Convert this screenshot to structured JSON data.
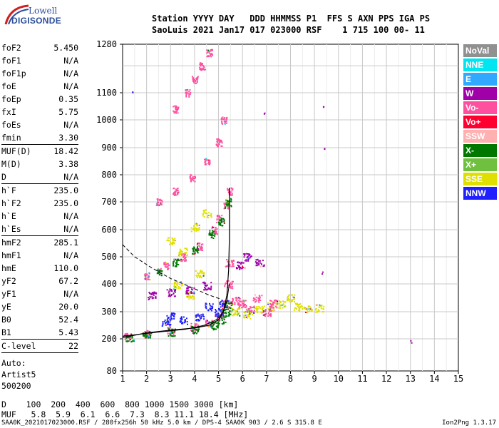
{
  "logo": {
    "line1": "Lowell",
    "line2": "DIGISONDE"
  },
  "header": {
    "line1": "Station YYYY DAY   DDD HHMMSS P1  FFS S AXN PPS IGA PS",
    "line2": "SaoLuis 2021 Jan17 017 023000 RSF    1 715 100 00- 11"
  },
  "params": [
    {
      "name": "foF2",
      "value": "5.450"
    },
    {
      "name": "foF1",
      "value": "N/A"
    },
    {
      "name": "foF1p",
      "value": "N/A"
    },
    {
      "name": "foE",
      "value": "N/A"
    },
    {
      "name": "foEp",
      "value": "0.35"
    },
    {
      "name": "fxI",
      "value": "5.75"
    },
    {
      "name": "foEs",
      "value": "N/A"
    },
    {
      "name": "fmin",
      "value": "3.30",
      "sep": true
    },
    {
      "name": "MUF(D)",
      "value": "18.42"
    },
    {
      "name": "M(D)",
      "value": "3.38"
    },
    {
      "name": "D",
      "value": "N/A",
      "sep": true
    },
    {
      "name": "h`F",
      "value": "235.0"
    },
    {
      "name": "h`F2",
      "value": "235.0"
    },
    {
      "name": "h`E",
      "value": "N/A"
    },
    {
      "name": "h`Es",
      "value": "N/A",
      "sep": true
    },
    {
      "name": "hmF2",
      "value": "285.1"
    },
    {
      "name": "hmF1",
      "value": "N/A"
    },
    {
      "name": "hmE",
      "value": "110.0"
    },
    {
      "name": "yF2",
      "value": "67.2"
    },
    {
      "name": "yF1",
      "value": "N/A"
    },
    {
      "name": "yE",
      "value": "20.0"
    },
    {
      "name": "B0",
      "value": "52.4"
    },
    {
      "name": "B1",
      "value": "5.43",
      "sep": true
    },
    {
      "name": "C-level",
      "value": "22",
      "sep": true
    }
  ],
  "auto": [
    "Auto:",
    "Artist5",
    "500200"
  ],
  "legend": [
    {
      "label": "NoVal",
      "color": "#909090"
    },
    {
      "label": "NNE",
      "color": "#00e5f0"
    },
    {
      "label": "E",
      "color": "#30a8ff"
    },
    {
      "label": "W",
      "color": "#a000a8"
    },
    {
      "label": "Vo-",
      "color": "#ff50a0"
    },
    {
      "label": "Vo+",
      "color": "#ff0030"
    },
    {
      "label": "SSW",
      "color": "#ffb0b0"
    },
    {
      "label": "X-",
      "color": "#007800"
    },
    {
      "label": "X+",
      "color": "#70c040"
    },
    {
      "label": "SSE",
      "color": "#e0e000"
    },
    {
      "label": "NNW",
      "color": "#2020ff"
    }
  ],
  "footer": {
    "d_row": "D    100  200  400  600  800 1000 1500 3000 [km]",
    "muf_row": "MUF   5.8  5.9  6.1  6.6  7.3  8.3 11.1 18.4 [MHz]",
    "info": "SAA0K_2021017023000.RSF / 280fx256h 50 kHz 5.0 km / DPS-4 SAA0K 903 / 2.6 S 315.8 E",
    "version": "Ion2Png 1.3.17"
  },
  "chart_data": {
    "type": "scatter",
    "x_ticks": [
      "1",
      "2",
      "3",
      "4",
      "5",
      "6",
      "7",
      "8",
      "9",
      "10",
      "11",
      "12",
      "13",
      "14",
      "15"
    ],
    "y_ticks": [
      "80",
      "200",
      "300",
      "400",
      "500",
      "600",
      "700",
      "800",
      "900",
      "1000",
      "1100",
      "1280"
    ],
    "xlim": [
      1,
      15
    ],
    "ylim": [
      80,
      1280
    ],
    "grid": true,
    "y_scale": "nonlinear",
    "profile_curve": [
      [
        1.0,
        205
      ],
      [
        2.0,
        222
      ],
      [
        3.0,
        232
      ],
      [
        4.0,
        240
      ],
      [
        4.6,
        250
      ],
      [
        5.0,
        270
      ],
      [
        5.2,
        300
      ],
      [
        5.35,
        360
      ],
      [
        5.42,
        450
      ],
      [
        5.45,
        560
      ],
      [
        5.45,
        680
      ],
      [
        5.45,
        750
      ]
    ],
    "trace_curve": [
      [
        1.0,
        210
      ],
      [
        2.5,
        225
      ],
      [
        3.6,
        235
      ],
      [
        4.4,
        250
      ],
      [
        4.9,
        270
      ],
      [
        5.2,
        300
      ],
      [
        5.35,
        340
      ],
      [
        5.45,
        400
      ]
    ],
    "dashed_curve": [
      [
        1.0,
        545
      ],
      [
        1.5,
        500
      ],
      [
        2.2,
        460
      ],
      [
        3.0,
        420
      ],
      [
        3.8,
        390
      ],
      [
        4.6,
        360
      ],
      [
        5.1,
        345
      ]
    ],
    "echo_clusters": [
      {
        "name": "O-trace",
        "color": "#ff50a0",
        "points": [
          [
            1.2,
            210
          ],
          [
            2.0,
            220
          ],
          [
            3.0,
            232
          ],
          [
            4.0,
            245
          ],
          [
            4.6,
            262
          ],
          [
            5.0,
            285
          ],
          [
            5.3,
            330
          ],
          [
            5.4,
            400
          ],
          [
            5.45,
            480
          ]
        ]
      },
      {
        "name": "X-trace",
        "color": "#007800",
        "points": [
          [
            1.3,
            205
          ],
          [
            2.0,
            215
          ],
          [
            3.0,
            225
          ],
          [
            4.0,
            235
          ],
          [
            4.8,
            250
          ],
          [
            5.1,
            270
          ],
          [
            5.3,
            300
          ],
          [
            5.4,
            320
          ]
        ]
      },
      {
        "name": "spread",
        "color": "#2020ff",
        "points": [
          [
            2.8,
            260
          ],
          [
            3.5,
            270
          ],
          [
            4.2,
            280
          ],
          [
            5.0,
            300
          ],
          [
            4.6,
            320
          ],
          [
            3.0,
            285
          ],
          [
            5.2,
            330
          ]
        ]
      },
      {
        "name": "second-hop",
        "color": "#ff50a0",
        "points": [
          [
            2.0,
            430
          ],
          [
            2.8,
            470
          ],
          [
            3.5,
            500
          ],
          [
            4.2,
            540
          ],
          [
            4.8,
            600
          ],
          [
            5.0,
            640
          ],
          [
            5.3,
            690
          ],
          [
            5.45,
            740
          ]
        ]
      },
      {
        "name": "second-hop-x",
        "color": "#007800",
        "points": [
          [
            2.5,
            445
          ],
          [
            3.2,
            480
          ],
          [
            4.0,
            525
          ],
          [
            4.7,
            585
          ],
          [
            5.1,
            630
          ],
          [
            5.4,
            700
          ]
        ]
      },
      {
        "name": "third-hop",
        "color": "#ff50a0",
        "points": [
          [
            2.5,
            700
          ],
          [
            3.2,
            740
          ],
          [
            3.9,
            790
          ],
          [
            4.5,
            850
          ],
          [
            5.0,
            920
          ],
          [
            5.2,
            1000
          ]
        ]
      },
      {
        "name": "fourth-hop",
        "color": "#ff50a0",
        "points": [
          [
            3.2,
            1040
          ],
          [
            3.7,
            1100
          ],
          [
            4.0,
            1150
          ],
          [
            4.3,
            1200
          ],
          [
            4.6,
            1250
          ]
        ]
      },
      {
        "name": "Es-spread",
        "color": "#e0e000",
        "points": [
          [
            5.7,
            300
          ],
          [
            6.2,
            290
          ],
          [
            6.7,
            310
          ],
          [
            7.2,
            320
          ],
          [
            7.6,
            330
          ],
          [
            8.0,
            350
          ],
          [
            8.3,
            320
          ],
          [
            8.7,
            310
          ],
          [
            9.2,
            315
          ]
        ]
      },
      {
        "name": "Es-pink",
        "color": "#ff50a0",
        "points": [
          [
            5.7,
            340
          ],
          [
            6.0,
            330
          ],
          [
            6.3,
            310
          ],
          [
            6.6,
            350
          ],
          [
            7.0,
            300
          ],
          [
            7.3,
            330
          ]
        ]
      },
      {
        "name": "plumes-yellow",
        "color": "#e0e000",
        "points": [
          [
            3.0,
            560
          ],
          [
            3.5,
            520
          ],
          [
            4.0,
            610
          ],
          [
            4.5,
            660
          ],
          [
            3.3,
            400
          ],
          [
            4.2,
            440
          ],
          [
            3.8,
            360
          ]
        ]
      },
      {
        "name": "plumes-violet",
        "color": "#a000a8",
        "points": [
          [
            2.2,
            360
          ],
          [
            3.0,
            370
          ],
          [
            3.8,
            380
          ],
          [
            4.5,
            395
          ],
          [
            5.9,
            470
          ],
          [
            6.2,
            500
          ],
          [
            6.7,
            480
          ]
        ]
      },
      {
        "name": "isolated",
        "color": "#a000a8",
        "points": [
          [
            9.35,
            1050
          ],
          [
            9.4,
            900
          ],
          [
            9.3,
            440
          ],
          [
            13.0,
            190
          ],
          [
            1.4,
            1100
          ],
          [
            6.9,
            1030
          ]
        ]
      }
    ]
  }
}
